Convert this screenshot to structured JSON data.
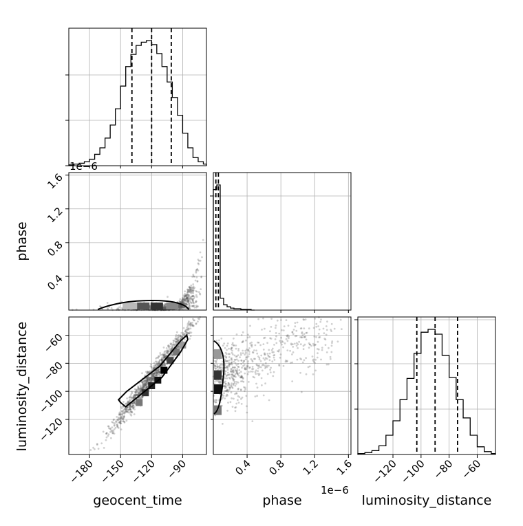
{
  "chart_data": {
    "type": "corner",
    "parameters": [
      "geocent_time",
      "phase",
      "luminosity_distance"
    ],
    "ranges": {
      "geocent_time": [
        -200,
        -67
      ],
      "phase": [
        -0.0,
        1.63e-06
      ],
      "luminosity_distance": [
        -145,
        -47
      ]
    },
    "ticks": {
      "geocent_time": [
        -180,
        -150,
        -120,
        -90
      ],
      "phase": [
        4e-07,
        8e-07,
        1.2e-06,
        1.6e-06
      ],
      "luminosity_distance": [
        -120,
        -100,
        -80,
        -60
      ]
    },
    "tick_labels": {
      "geocent_time": [
        "−180",
        "−150",
        "−120",
        "−90"
      ],
      "phase": [
        "0.4",
        "0.8",
        "1.2",
        "1.6"
      ],
      "luminosity_distance": [
        "−120",
        "−100",
        "−80",
        "−60"
      ]
    },
    "offset_text": "1e−6",
    "quantiles": {
      "geocent_time": [
        -139,
        -120,
        -101
      ],
      "phase": [
        3e-08,
        6e-08
      ],
      "luminosity_distance": [
        -103,
        -90,
        -74
      ]
    },
    "histograms": {
      "geocent_time": {
        "edges": [
          -200,
          -195,
          -190,
          -185,
          -180,
          -175,
          -170,
          -165,
          -160,
          -155,
          -150,
          -145,
          -140,
          -135,
          -130,
          -125,
          -120,
          -115,
          -110,
          -105,
          -100,
          -95,
          -90,
          -85,
          -80,
          -75,
          -70,
          -67
        ],
        "counts": [
          1,
          2,
          3,
          5,
          8,
          14,
          22,
          34,
          50,
          70,
          98,
          122,
          137,
          148,
          152,
          154,
          149,
          138,
          122,
          103,
          84,
          62,
          40,
          22,
          10,
          5,
          2
        ]
      },
      "phase": {
        "edges": [
          0,
          4.07e-08,
          8.15e-08,
          1.22e-07,
          1.63e-07,
          2.04e-07,
          2.44e-07,
          2.85e-07,
          3.26e-07,
          3.67e-07,
          4.07e-07,
          4.48e-07,
          4.89e-07
        ],
        "counts": [
          183,
          190,
          18,
          8,
          5,
          3,
          2,
          2,
          1,
          1,
          1,
          0
        ]
      },
      "luminosity_distance": {
        "edges": [
          -145,
          -140,
          -135,
          -130,
          -125,
          -120,
          -115,
          -110,
          -105,
          -100,
          -95,
          -90,
          -85,
          -80,
          -75,
          -70,
          -65,
          -60,
          -55,
          -50,
          -47
        ],
        "counts": [
          1,
          2,
          4,
          9,
          20,
          35,
          57,
          79,
          105,
          127,
          130,
          125,
          103,
          80,
          57,
          38,
          20,
          8,
          3,
          1
        ]
      }
    },
    "grid": true
  }
}
